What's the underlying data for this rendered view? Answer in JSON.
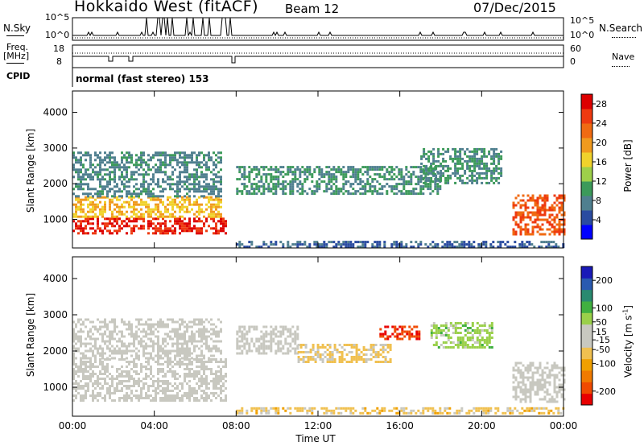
{
  "header": {
    "station": "Hokkaido West (fitACF)",
    "beam": "Beam 12",
    "date": "07/Dec/2015"
  },
  "status_panel": {
    "nsky_label": "N.Sky",
    "nsky_ticks": [
      "10^5",
      "10^0"
    ],
    "nsearch_label": "N.Search",
    "nsearch_ticks": [
      "10^5",
      "10^0"
    ],
    "freq_label_line1": "Freq.",
    "freq_label_line2": "[MHz]",
    "freq_ticks": [
      "18",
      "8"
    ],
    "nave_label": "Nave",
    "nave_ticks": [
      "60",
      "0"
    ],
    "cpid_label": "CPID",
    "cpid_text": "normal (fast stereo) 153"
  },
  "colors": {
    "power_scale": [
      "#0000ff",
      "#2a4ba0",
      "#4f7f8f",
      "#3c9a5a",
      "#9ed04a",
      "#f0d22c",
      "#f09a1e",
      "#f06a12",
      "#ee3a10",
      "#dd0000"
    ],
    "velocity_scale": [
      "#e80000",
      "#f04a00",
      "#f07a00",
      "#f0a000",
      "#f0c050",
      "#c8c8c0",
      "#c8c8c0",
      "#9ad04a",
      "#40b040",
      "#2a8a70",
      "#2a5ab0",
      "#1a1ab8"
    ]
  },
  "chart_data": [
    {
      "type": "heatmap",
      "title": "",
      "xlabel": "Time UT",
      "ylabel": "Slant Range [km]",
      "x_ticks": [
        "00:00",
        "04:00",
        "08:00",
        "12:00",
        "16:00",
        "20:00",
        "00:00"
      ],
      "x_range_hours": [
        0,
        24
      ],
      "y_ticks": [
        1000,
        2000,
        3000,
        4000
      ],
      "ylim": [
        200,
        4600
      ],
      "colorbar_label": "Power [dB]",
      "colorbar_ticks": [
        4,
        8,
        12,
        16,
        20,
        24,
        28
      ],
      "colorbar_range": [
        0,
        30
      ],
      "echo_regions": [
        {
          "t0": 0.0,
          "t1": 7.5,
          "r0": 600,
          "r1": 1050,
          "value": 27
        },
        {
          "t0": 0.0,
          "t1": 7.3,
          "r0": 1050,
          "r1": 1650,
          "value": 18
        },
        {
          "t0": 0.0,
          "t1": 7.3,
          "r0": 1650,
          "r1": 2900,
          "value": 8
        },
        {
          "t0": 8.0,
          "t1": 18.0,
          "r0": 1700,
          "r1": 2500,
          "value": 9
        },
        {
          "t0": 17.0,
          "t1": 21.0,
          "r0": 2000,
          "r1": 3000,
          "value": 9
        },
        {
          "t0": 21.5,
          "t1": 24.0,
          "r0": 600,
          "r1": 1700,
          "value": 24
        },
        {
          "t0": 8.0,
          "t1": 24.0,
          "r0": 250,
          "r1": 400,
          "value": 6
        }
      ]
    },
    {
      "type": "heatmap",
      "title": "",
      "xlabel": "Time UT",
      "ylabel": "Slant Range [km]",
      "x_ticks": [
        "00:00",
        "04:00",
        "08:00",
        "12:00",
        "16:00",
        "20:00",
        "00:00"
      ],
      "x_range_hours": [
        0,
        24
      ],
      "y_ticks": [
        1000,
        2000,
        3000,
        4000
      ],
      "ylim": [
        200,
        4600
      ],
      "colorbar_label": "Velocity [m s^-1]",
      "colorbar_ticks": [
        -200,
        -100,
        -50,
        -15,
        15,
        50,
        100,
        200
      ],
      "colorbar_range": [
        -250,
        250
      ],
      "echo_regions": [
        {
          "t0": 0.0,
          "t1": 7.5,
          "r0": 600,
          "r1": 1800,
          "value": 0
        },
        {
          "t0": 0.0,
          "t1": 7.3,
          "r0": 1800,
          "r1": 2900,
          "value": 0
        },
        {
          "t0": 8.0,
          "t1": 11.0,
          "r0": 1900,
          "r1": 2700,
          "value": 0
        },
        {
          "t0": 11.0,
          "t1": 15.5,
          "r0": 1700,
          "r1": 2200,
          "value": -50
        },
        {
          "t0": 15.0,
          "t1": 17.0,
          "r0": 2300,
          "r1": 2700,
          "value": -200
        },
        {
          "t0": 17.5,
          "t1": 20.5,
          "r0": 2100,
          "r1": 2800,
          "value": 60
        },
        {
          "t0": 21.5,
          "t1": 24.0,
          "r0": 600,
          "r1": 1700,
          "value": 10
        },
        {
          "t0": 8.0,
          "t1": 24.0,
          "r0": 250,
          "r1": 450,
          "value": -60
        }
      ]
    }
  ]
}
